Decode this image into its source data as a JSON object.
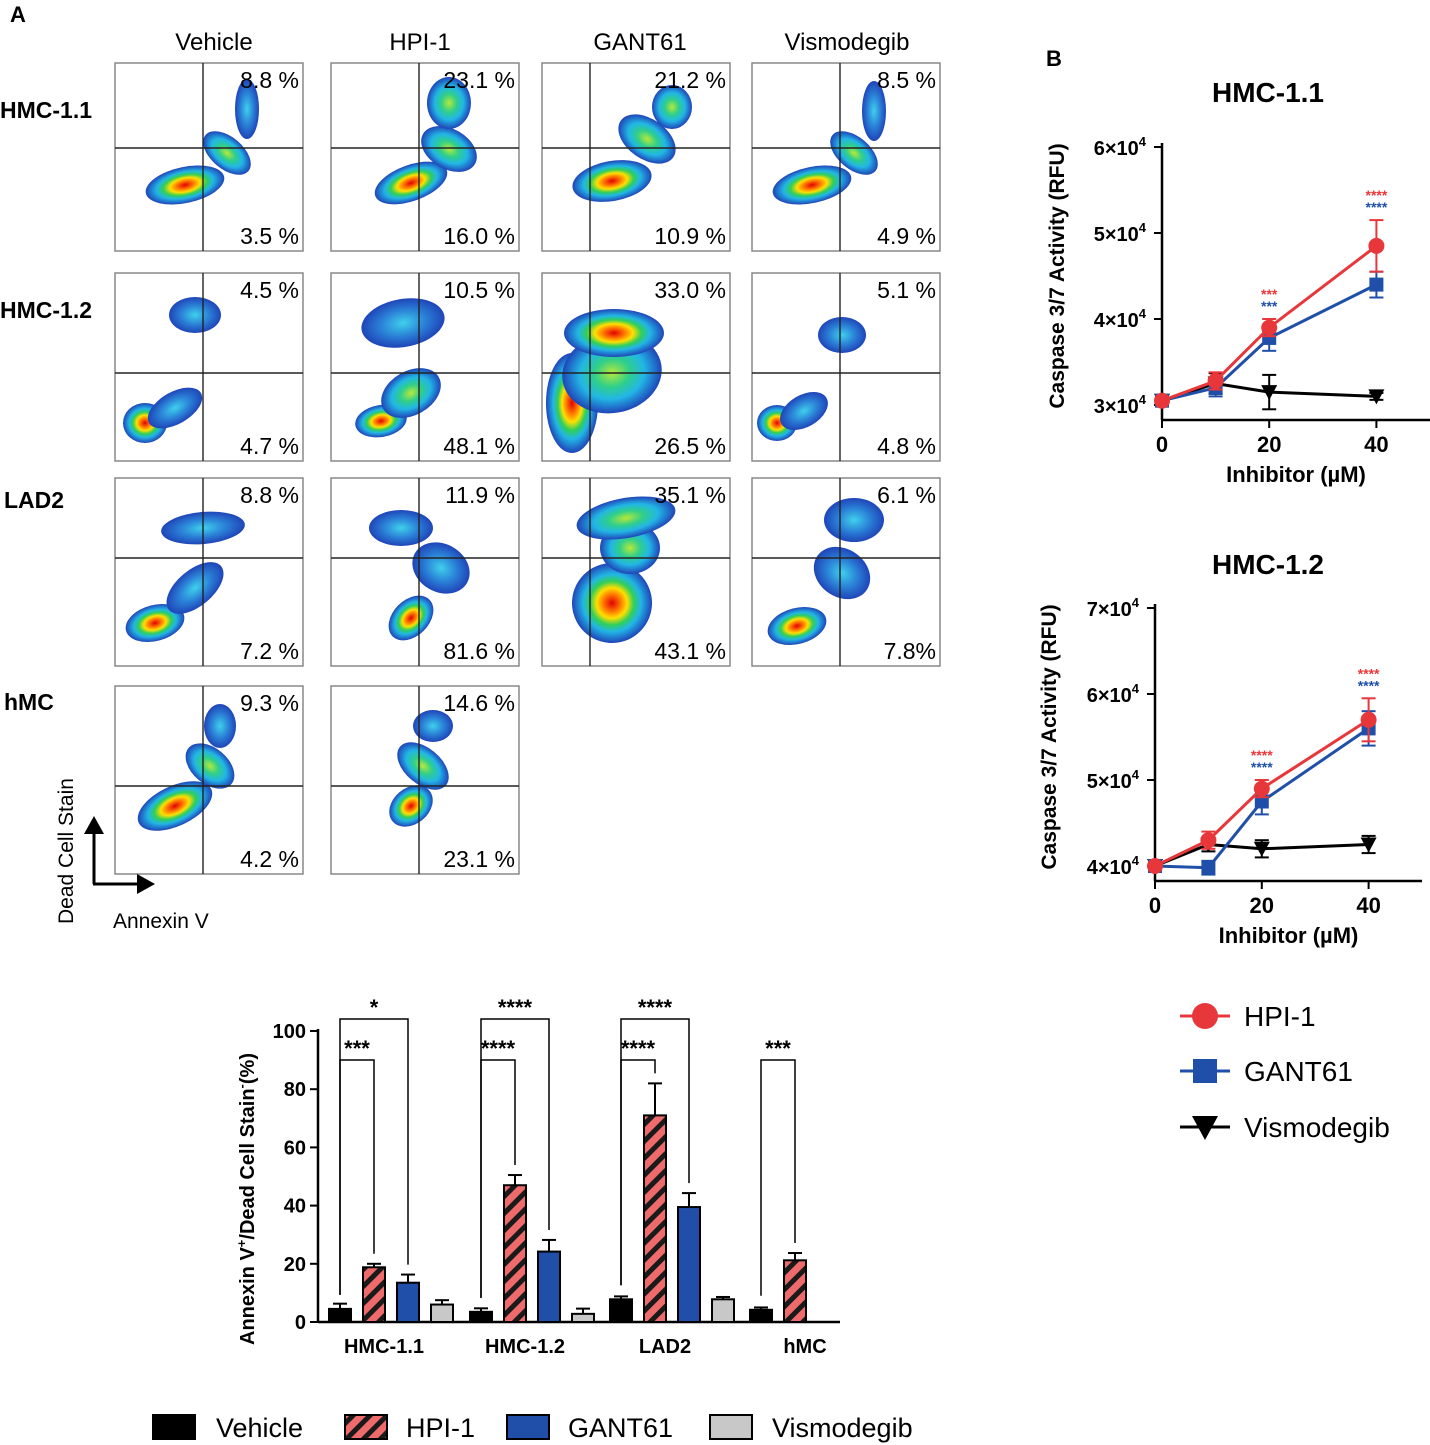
{
  "panel_labels": {
    "a": "A",
    "b": "B"
  },
  "flow": {
    "columns": [
      "Vehicle",
      "HPI-1",
      "GANT61",
      "Vismodegib"
    ],
    "rows": [
      {
        "name": "HMC-1.1",
        "upper": [
          "8.8 %",
          "23.1 %",
          "21.2 %",
          "8.5  %"
        ],
        "lower": [
          "3.5 %",
          "16.0 %",
          "10.9 %",
          "4.9 %"
        ]
      },
      {
        "name": "HMC-1.2",
        "upper": [
          "4.5 %",
          "10.5 %",
          "33.0 %",
          "5.1 %"
        ],
        "lower": [
          "4.7 %",
          "48.1  %",
          "26.5 %",
          "4.8 %"
        ]
      },
      {
        "name": "LAD2",
        "upper": [
          "8.8 %",
          "11.9  %",
          "35.1  %",
          "6.1 %"
        ],
        "lower": [
          "7.2 %",
          "81.6 %",
          "43.1 %",
          "7.8%"
        ]
      },
      {
        "name": "hMC",
        "upper": [
          "9.3 %",
          "14.6 %"
        ],
        "lower": [
          "4.2 %",
          "23.1 %"
        ]
      }
    ],
    "axis_y_label": "Dead Cell  Stain",
    "axis_x_label": "Annexin V"
  },
  "chart_data": [
    {
      "type": "bar",
      "title": "",
      "xlabel": "",
      "ylabel_parts": [
        "Annexin V",
        "+",
        "/Dead Cell Stain",
        "-",
        "(%)"
      ],
      "ylim": [
        0,
        100
      ],
      "yticks": [
        0,
        20,
        40,
        60,
        80,
        100
      ],
      "categories": [
        "HMC-1.1",
        "HMC-1.2",
        "LAD2",
        "hMC"
      ],
      "series": [
        {
          "name": "Vehicle",
          "color": "#000000",
          "values": [
            4.5,
            3.5,
            7.8,
            4.2
          ],
          "errors": [
            1.8,
            1.2,
            1.0,
            0.8
          ]
        },
        {
          "name": "HPI-1",
          "color": "#ef6a6a",
          "values": [
            18.8,
            47.0,
            71.0,
            21.2
          ],
          "errors": [
            1.2,
            3.5,
            11.0,
            2.5
          ]
        },
        {
          "name": "GANT61",
          "color": "#1f4fa8",
          "values": [
            13.5,
            24.2,
            39.5,
            null
          ],
          "errors": [
            2.8,
            4.0,
            4.8,
            null
          ]
        },
        {
          "name": "Vismodegib",
          "color": "#c8c8c8",
          "values": [
            6.0,
            2.8,
            7.8,
            null
          ],
          "errors": [
            1.5,
            1.8,
            0.8,
            null
          ]
        }
      ],
      "significance": [
        {
          "category": "HMC-1.1",
          "from": "Vehicle",
          "to": "HPI-1",
          "label": "***"
        },
        {
          "category": "HMC-1.1",
          "from": "Vehicle",
          "to": "GANT61",
          "label": "*"
        },
        {
          "category": "HMC-1.2",
          "from": "Vehicle",
          "to": "HPI-1",
          "label": "****"
        },
        {
          "category": "HMC-1.2",
          "from": "Vehicle",
          "to": "GANT61",
          "label": "****"
        },
        {
          "category": "LAD2",
          "from": "Vehicle",
          "to": "HPI-1",
          "label": "****"
        },
        {
          "category": "LAD2",
          "from": "Vehicle",
          "to": "GANT61",
          "label": "****"
        },
        {
          "category": "hMC",
          "from": "Vehicle",
          "to": "HPI-1",
          "label": "***"
        }
      ],
      "legend": [
        "Vehicle",
        "HPI-1",
        "GANT61",
        "Vismodegib"
      ]
    },
    {
      "type": "line",
      "title": "HMC-1.1",
      "xlabel": "Inhibitor (µM)",
      "ylabel": "Caspase 3/7 Activity (RFU)",
      "x": [
        0,
        10,
        20,
        40
      ],
      "xticks": [
        0,
        20,
        40
      ],
      "xlim": [
        0,
        50
      ],
      "ylim": [
        30000,
        60000
      ],
      "yticks": [
        30000,
        40000,
        50000,
        60000
      ],
      "ytick_labels": [
        "3×10",
        "4×10",
        "5×10",
        "6×10"
      ],
      "series": [
        {
          "name": "HPI-1",
          "values": [
            30500,
            32800,
            39000,
            48500
          ],
          "errors": [
            300,
            1000,
            1000,
            3000
          ]
        },
        {
          "name": "GANT61",
          "values": [
            30500,
            32000,
            37800,
            44000
          ],
          "errors": [
            300,
            1000,
            1500,
            1500
          ]
        },
        {
          "name": "Vismodegib",
          "values": [
            30500,
            32500,
            31500,
            31000
          ],
          "errors": [
            300,
            1200,
            2000,
            400
          ]
        }
      ],
      "annotations": [
        {
          "x": 20,
          "series": "HPI-1",
          "label": "***"
        },
        {
          "x": 20,
          "series": "GANT61",
          "label": "***"
        },
        {
          "x": 40,
          "series": "HPI-1",
          "label": "****"
        },
        {
          "x": 40,
          "series": "GANT61",
          "label": "****"
        }
      ]
    },
    {
      "type": "line",
      "title": "HMC-1.2",
      "xlabel": "Inhibitor (µM)",
      "ylabel": "Caspase 3/7 Activity (RFU)",
      "x": [
        0,
        10,
        20,
        40
      ],
      "xticks": [
        0,
        20,
        40
      ],
      "xlim": [
        0,
        50
      ],
      "ylim": [
        40000,
        70000
      ],
      "yticks": [
        40000,
        50000,
        60000,
        70000
      ],
      "ytick_labels": [
        "4×10",
        "5×10",
        "6×10",
        "7×10"
      ],
      "series": [
        {
          "name": "HPI-1",
          "values": [
            40000,
            43000,
            49000,
            57000
          ],
          "errors": [
            300,
            1000,
            1000,
            2500
          ]
        },
        {
          "name": "GANT61",
          "values": [
            40000,
            39800,
            47500,
            56000
          ],
          "errors": [
            300,
            800,
            1500,
            2000
          ]
        },
        {
          "name": "Vismodegib",
          "values": [
            40000,
            42500,
            42000,
            42500
          ],
          "errors": [
            300,
            800,
            1000,
            1000
          ]
        }
      ],
      "annotations": [
        {
          "x": 20,
          "series": "HPI-1",
          "label": "****"
        },
        {
          "x": 20,
          "series": "GANT61",
          "label": "****"
        },
        {
          "x": 40,
          "series": "HPI-1",
          "label": "****"
        },
        {
          "x": 40,
          "series": "GANT61",
          "label": "****"
        }
      ]
    }
  ],
  "line_legend": [
    "HPI-1",
    "GANT61",
    "Vismodegib"
  ],
  "colors": {
    "hpi": "#e8373a",
    "gant": "#1f4fa8",
    "vismo": "#000000",
    "hpi_bar": "#ef6a6a",
    "grey": "#c8c8c8"
  }
}
